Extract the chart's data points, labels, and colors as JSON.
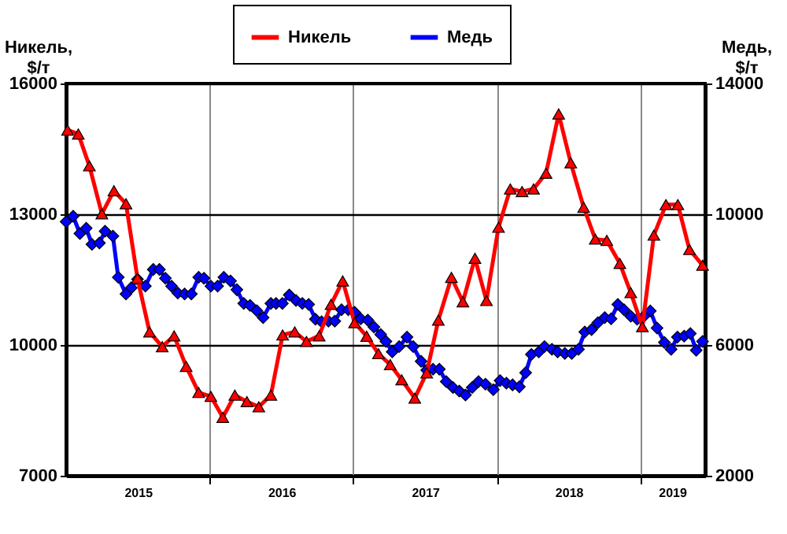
{
  "chart_data": {
    "type": "line",
    "ylabel": "Никель, $/т",
    "y2label": "Медь, $/т",
    "legend": "top",
    "grid": true,
    "xlim": [
      2015,
      2019.45
    ],
    "xticks": [
      {
        "value": 2015.5,
        "label": "2015"
      },
      {
        "value": 2016,
        "label": null
      },
      {
        "value": 2016.5,
        "label": "2016"
      },
      {
        "value": 2017,
        "label": null
      },
      {
        "value": 2017.5,
        "label": "2017"
      },
      {
        "value": 2018,
        "label": null
      },
      {
        "value": 2018.5,
        "label": "2018"
      },
      {
        "value": 2019,
        "label": null
      },
      {
        "value": 2019.22,
        "label": "2019"
      }
    ],
    "ylim": [
      7000,
      16000
    ],
    "yticks": [
      7000,
      10000,
      13000,
      16000
    ],
    "y2lim": [
      2000,
      14000
    ],
    "y2ticks": [
      2000,
      6000,
      10000,
      14000
    ],
    "series": [
      {
        "name": "Никель",
        "color": "#ff0000",
        "marker": "triangle",
        "x": [
          2015.01,
          2015.085,
          2015.162,
          2015.249,
          2015.333,
          2015.417,
          2015.497,
          2015.581,
          2015.669,
          2015.752,
          2015.836,
          2015.923,
          2016.008,
          2016.091,
          2016.175,
          2016.259,
          2016.342,
          2016.426,
          2016.508,
          2016.592,
          2016.674,
          2016.762,
          2016.845,
          2016.926,
          2017.009,
          2017.093,
          2017.175,
          2017.257,
          2017.337,
          2017.428,
          2017.511,
          2017.592,
          2017.683,
          2017.763,
          2017.847,
          2017.927,
          2018.011,
          2018.093,
          2018.175,
          2018.255,
          2018.342,
          2018.43,
          2018.514,
          2018.604,
          2018.685,
          2018.765,
          2018.856,
          2018.932,
          2019.013,
          2019.093,
          2019.177,
          2019.26,
          2019.341,
          2019.432
        ],
        "values": [
          14930,
          14840,
          14110,
          13010,
          13540,
          13240,
          11530,
          10300,
          9960,
          10210,
          9510,
          8910,
          8820,
          8340,
          8850,
          8700,
          8580,
          8850,
          10230,
          10300,
          10080,
          10210,
          10930,
          11470,
          10510,
          10200,
          9800,
          9550,
          9200,
          8780,
          9360,
          10570,
          11550,
          10990,
          11990,
          11020,
          12700,
          13580,
          13520,
          13580,
          13940,
          15300,
          14180,
          13160,
          12430,
          12400,
          11870,
          11200,
          10420,
          12520,
          13220,
          13220,
          12190,
          11830
        ]
      },
      {
        "name": "Медь",
        "color": "#0000ff",
        "marker": "diamond",
        "axis": "y2",
        "x": [
          2015.0,
          2015.049,
          2015.096,
          2015.14,
          2015.18,
          2015.232,
          2015.271,
          2015.326,
          2015.363,
          2015.417,
          2015.454,
          2015.497,
          2015.552,
          2015.607,
          2015.65,
          2015.691,
          2015.734,
          2015.778,
          2015.825,
          2015.872,
          2015.923,
          2015.96,
          2016.008,
          2016.055,
          2016.098,
          2016.145,
          2016.189,
          2016.237,
          2016.281,
          2016.328,
          2016.372,
          2016.426,
          2016.462,
          2016.506,
          2016.554,
          2016.601,
          2016.645,
          2016.689,
          2016.736,
          2016.779,
          2016.827,
          2016.871,
          2016.918,
          2016.965,
          2017.009,
          2017.052,
          2017.101,
          2017.144,
          2017.191,
          2017.227,
          2017.271,
          2017.319,
          2017.374,
          2017.417,
          2017.472,
          2017.511,
          2017.555,
          2017.599,
          2017.647,
          2017.694,
          2017.738,
          2017.781,
          2017.828,
          2017.872,
          2017.92,
          2017.975,
          2018.022,
          2018.066,
          2018.109,
          2018.156,
          2018.2,
          2018.24,
          2018.292,
          2018.331,
          2018.383,
          2018.423,
          2018.473,
          2018.521,
          2018.568,
          2018.612,
          2018.659,
          2018.703,
          2018.751,
          2018.795,
          2018.842,
          2018.885,
          2018.932,
          2018.976,
          2019.024,
          2019.068,
          2019.115,
          2019.166,
          2019.213,
          2019.257,
          2019.304,
          2019.347,
          2019.388,
          2019.432
        ],
        "values": [
          9770,
          9940,
          9410,
          9570,
          9080,
          9120,
          9480,
          9330,
          8070,
          7560,
          7750,
          8010,
          7800,
          8310,
          8310,
          8040,
          7800,
          7590,
          7560,
          7560,
          8070,
          8040,
          7800,
          7800,
          8070,
          7960,
          7690,
          7270,
          7210,
          7050,
          6840,
          7270,
          7270,
          7270,
          7530,
          7360,
          7270,
          7240,
          6790,
          6710,
          6730,
          6730,
          7080,
          7080,
          7000,
          6800,
          6760,
          6550,
          6320,
          6110,
          5790,
          5950,
          6240,
          5950,
          5500,
          5230,
          5260,
          5260,
          4880,
          4700,
          4590,
          4470,
          4700,
          4880,
          4800,
          4630,
          4910,
          4830,
          4780,
          4720,
          5150,
          5710,
          5790,
          5950,
          5870,
          5790,
          5740,
          5740,
          5870,
          6400,
          6470,
          6680,
          6840,
          6800,
          7240,
          7080,
          6880,
          6790,
          6880,
          7040,
          6520,
          6080,
          5870,
          6240,
          6270,
          6350,
          5840,
          6110
        ]
      }
    ]
  }
}
